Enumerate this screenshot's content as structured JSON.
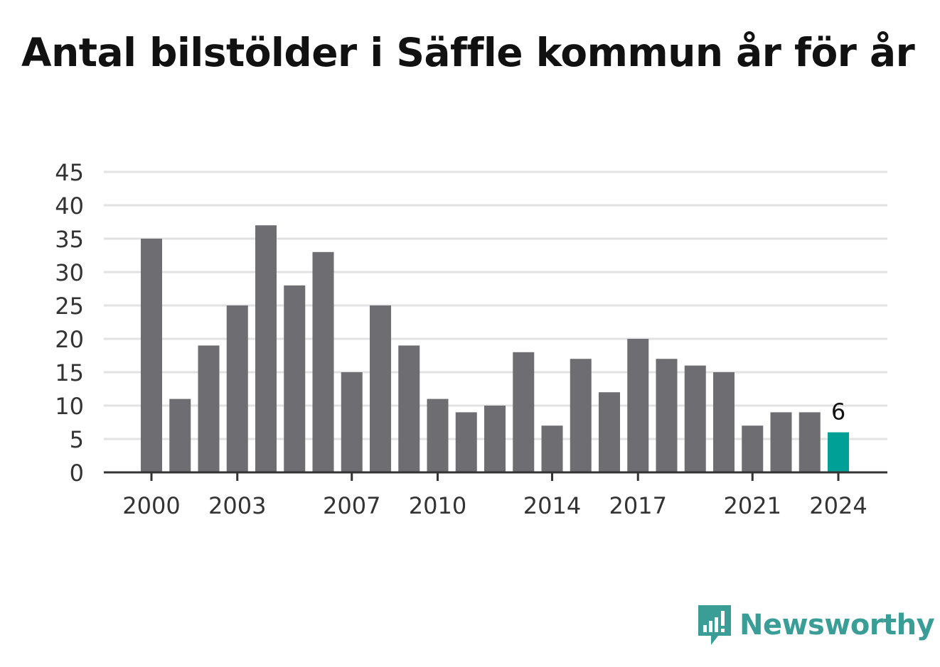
{
  "title": "Antal bilstölder i Säffle kommun år för år",
  "brand": {
    "name": "Newsworthy",
    "logo_icon": "bar-chart-speech-bubble-icon"
  },
  "colors": {
    "bar": "#6e6d72",
    "highlight": "#00a096",
    "grid": "#e2e2e2",
    "axis": "#333333",
    "brand": "#3a9e96"
  },
  "chart_data": {
    "type": "bar",
    "title": "Antal bilstölder i Säffle kommun år för år",
    "xlabel": "",
    "ylabel": "",
    "categories": [
      "2000",
      "2001",
      "2002",
      "2003",
      "2004",
      "2005",
      "2006",
      "2007",
      "2008",
      "2009",
      "2010",
      "2011",
      "2012",
      "2013",
      "2014",
      "2015",
      "2016",
      "2017",
      "2018",
      "2019",
      "2020",
      "2021",
      "2022",
      "2023",
      "2024"
    ],
    "values": [
      35,
      11,
      19,
      25,
      37,
      28,
      33,
      15,
      25,
      19,
      11,
      9,
      10,
      18,
      7,
      17,
      12,
      20,
      17,
      16,
      15,
      7,
      9,
      9,
      6
    ],
    "x_tick_labels": [
      "2000",
      "2003",
      "2007",
      "2010",
      "2014",
      "2017",
      "2021",
      "2024"
    ],
    "y_ticks": [
      0,
      5,
      10,
      15,
      20,
      25,
      30,
      35,
      40,
      45
    ],
    "ylim": [
      0,
      45
    ],
    "grid": true,
    "highlight": {
      "category": "2024",
      "label": "6"
    }
  }
}
